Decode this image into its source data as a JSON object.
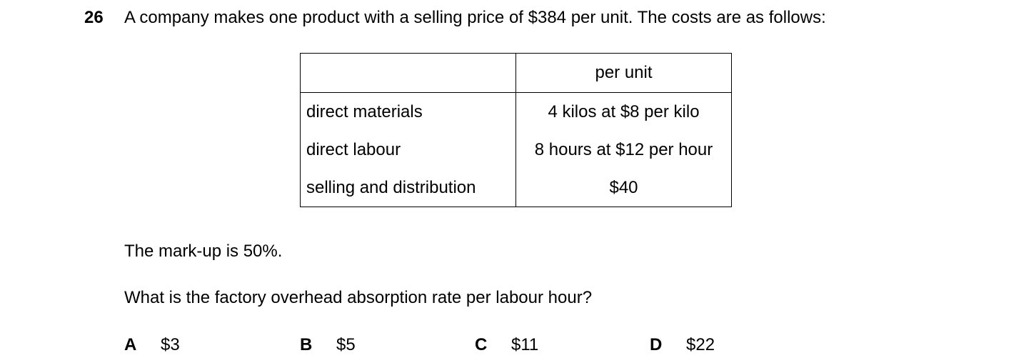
{
  "question": {
    "number": "26",
    "stem": "A company makes one product with a selling price of $384 per unit. The costs are as follows:",
    "table": {
      "header": [
        "",
        "per unit"
      ],
      "rows": [
        [
          "direct materials",
          "4 kilos at $8 per kilo"
        ],
        [
          "direct labour",
          "8 hours at $12 per hour"
        ],
        [
          "selling and distribution",
          "$40"
        ]
      ]
    },
    "markup_statement": "The mark-up is 50%.",
    "prompt": "What is the factory overhead absorption rate per labour hour?",
    "options": [
      {
        "letter": "A",
        "value": "$3"
      },
      {
        "letter": "B",
        "value": "$5"
      },
      {
        "letter": "C",
        "value": "$11"
      },
      {
        "letter": "D",
        "value": "$22"
      }
    ]
  }
}
